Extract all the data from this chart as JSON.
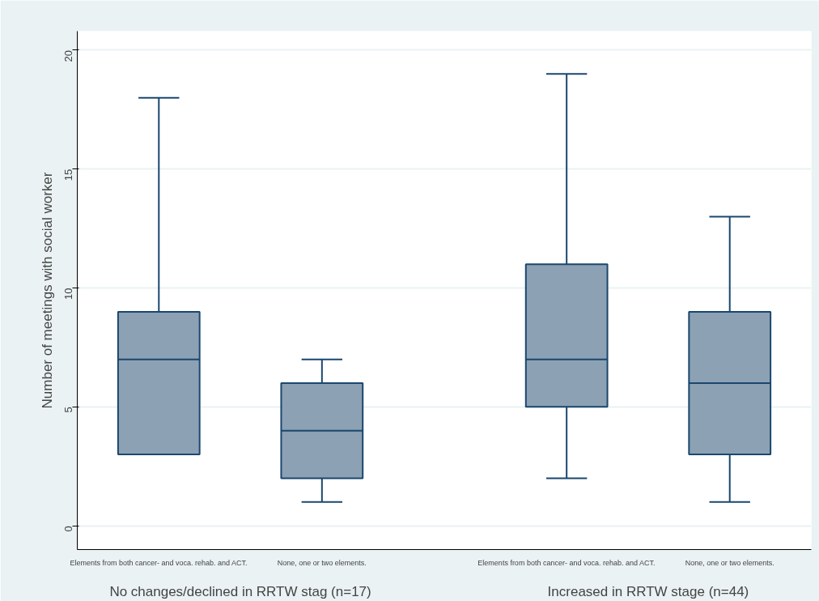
{
  "chart_data": {
    "type": "box",
    "ylabel": "Number of meetings with social worker",
    "categories": [
      "Elements from both cancer- and voca. rehab. and ACT.",
      "None, one or two elements.",
      "Elements from both cancer- and voca. rehab. and ACT.",
      "None, one or two elements."
    ],
    "boxes": [
      {
        "low": 3,
        "q1": 3,
        "median": 7,
        "q3": 9,
        "high": 18
      },
      {
        "low": 1,
        "q1": 2,
        "median": 4,
        "q3": 6,
        "high": 7
      },
      {
        "low": 2,
        "q1": 5,
        "median": 7,
        "q3": 11,
        "high": 19
      },
      {
        "low": 1,
        "q1": 3,
        "median": 6,
        "q3": 9,
        "high": 13
      }
    ],
    "color": "#8ca1b3",
    "ylim": [
      -1,
      20.8
    ],
    "yticks": [
      0,
      5,
      10,
      15,
      20
    ],
    "grid": "y",
    "annotations": [
      "No changes/declined in RRTW stag (n=17)",
      "Increased in RRTW stage (n=44)"
    ]
  }
}
